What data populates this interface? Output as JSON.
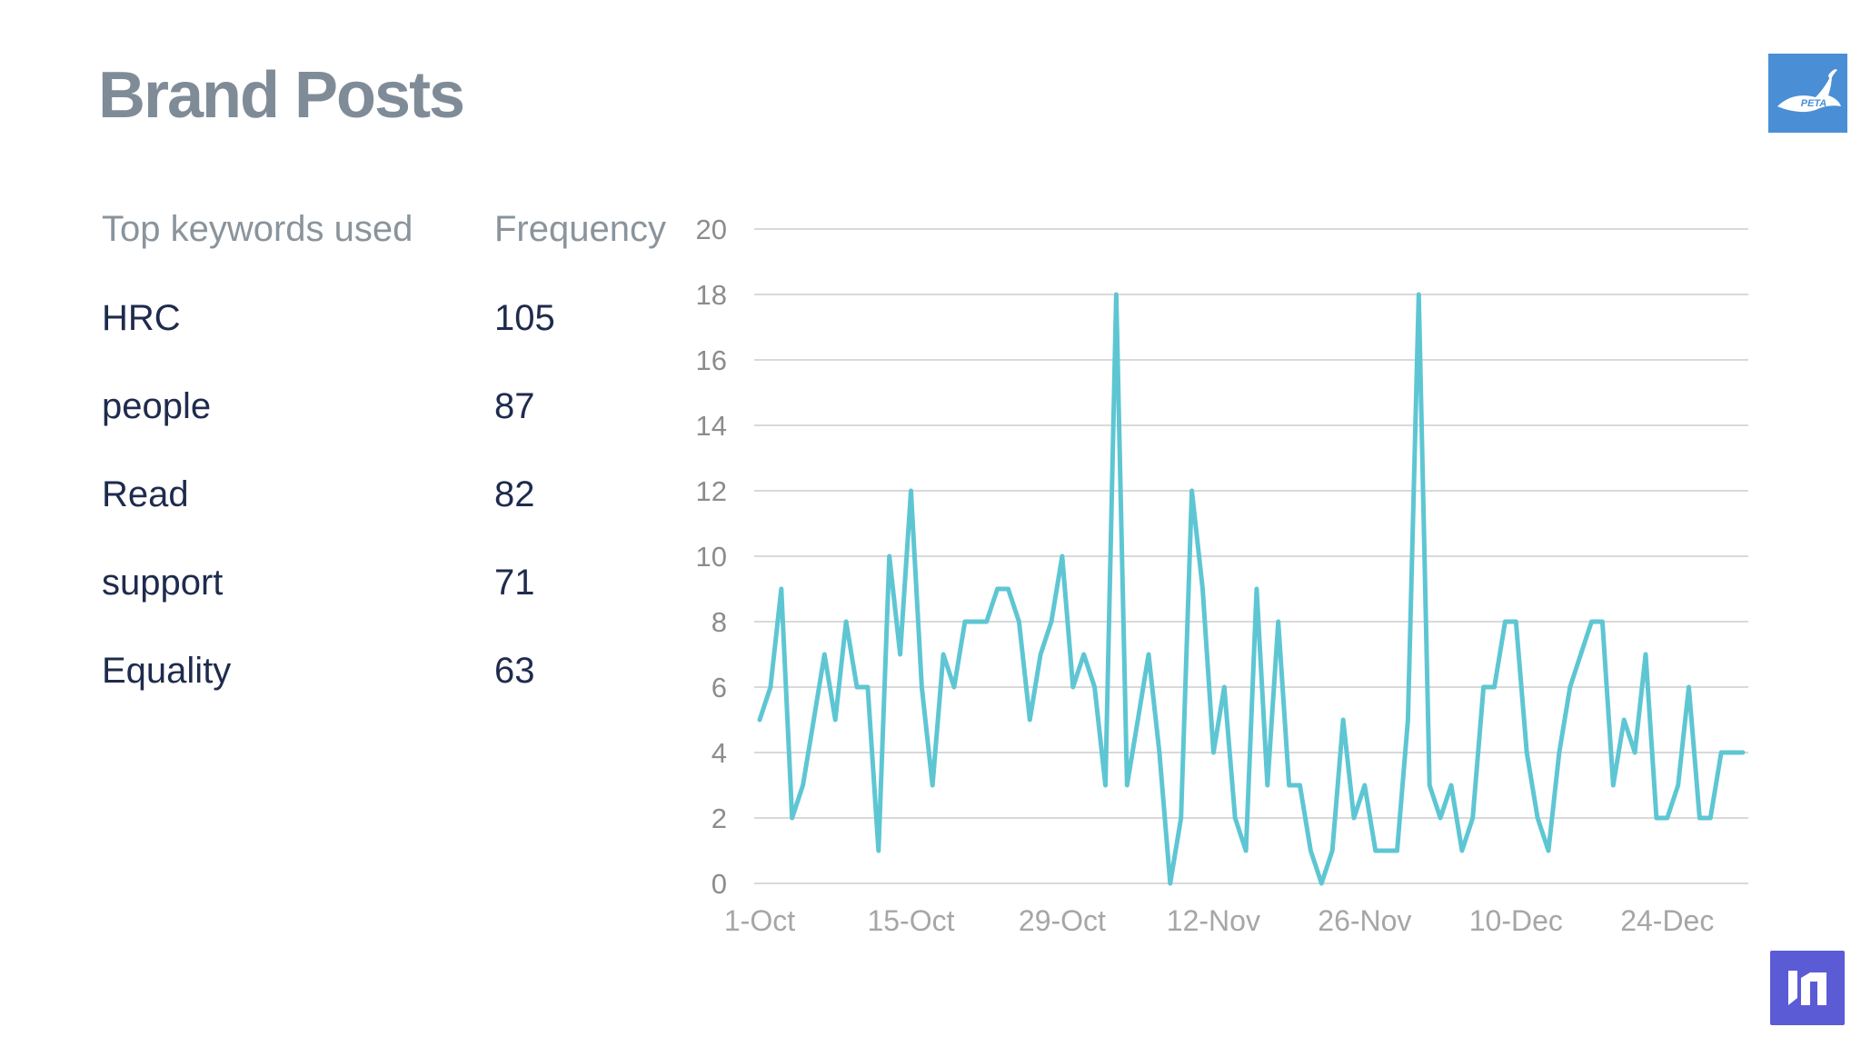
{
  "slide": {
    "title": "Brand Posts"
  },
  "keywords_table": {
    "header_keyword": "Top keywords used",
    "header_frequency": "Frequency",
    "rows": [
      {
        "keyword": "HRC",
        "frequency": "105"
      },
      {
        "keyword": "people",
        "frequency": "87"
      },
      {
        "keyword": "Read",
        "frequency": "82"
      },
      {
        "keyword": "support",
        "frequency": "71"
      },
      {
        "keyword": "Equality",
        "frequency": "63"
      }
    ]
  },
  "logos": {
    "top_right": "peta-logo-icon",
    "bottom_right": "brand-logo-icon",
    "top_right_text": "PETA"
  },
  "colors": {
    "line": "#5ec6d3",
    "title": "#7f8c98",
    "grid": "#d9d9d9",
    "peta_bg": "#4a8fd6",
    "brand_bg": "#5b5bd6"
  },
  "chart_data": {
    "type": "line",
    "x_start": "1-Oct",
    "x_tick_labels": [
      "1-Oct",
      "15-Oct",
      "29-Oct",
      "12-Nov",
      "26-Nov",
      "10-Dec",
      "24-Dec"
    ],
    "x_tick_indices": [
      0,
      14,
      28,
      42,
      56,
      70,
      84
    ],
    "ylim": [
      0,
      20
    ],
    "y_ticks": [
      0,
      2,
      4,
      6,
      8,
      10,
      12,
      14,
      16,
      18,
      20
    ],
    "grid": true,
    "legend": "none",
    "series": [
      {
        "values": [
          5,
          6,
          9,
          2,
          3,
          5,
          7,
          5,
          8,
          6,
          6,
          1,
          10,
          7,
          12,
          6,
          3,
          7,
          6,
          8,
          8,
          8,
          9,
          9,
          8,
          5,
          7,
          8,
          10,
          6,
          7,
          6,
          3,
          18,
          3,
          5,
          7,
          4,
          0,
          2,
          12,
          9,
          4,
          6,
          2,
          1,
          9,
          3,
          8,
          3,
          3,
          1,
          0,
          1,
          5,
          2,
          3,
          1,
          1,
          1,
          5,
          18,
          3,
          2,
          3,
          1,
          2,
          6,
          6,
          8,
          8,
          4,
          2,
          1,
          4,
          6,
          7,
          8,
          8,
          3,
          5,
          4,
          7,
          2,
          2,
          3,
          6,
          2,
          2,
          4,
          4,
          4
        ]
      }
    ]
  }
}
